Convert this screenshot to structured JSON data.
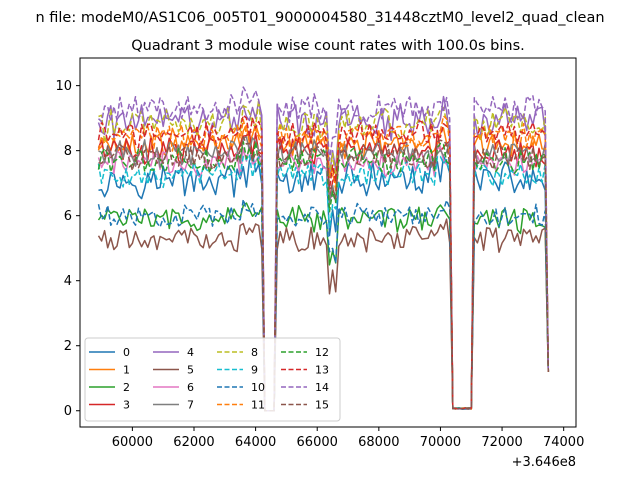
{
  "figure_title": "n file: modeM0/AS1C06_005T01_9000004580_31448cztM0_level2_quad_clean",
  "chart_data": {
    "type": "line",
    "title": "Quadrant 3 module wise count rates with 100.0s bins.",
    "xlabel": "",
    "ylabel": "",
    "xlim": [
      58300,
      74400
    ],
    "ylim": [
      -0.5,
      10.85
    ],
    "x_offset_label": "+3.646e8",
    "x_ticks": [
      60000,
      62000,
      64000,
      66000,
      68000,
      70000,
      72000,
      74000
    ],
    "x_tick_labels": [
      "60000",
      "62000",
      "64000",
      "66000",
      "68000",
      "70000",
      "72000",
      "74000"
    ],
    "y_ticks": [
      0,
      2,
      4,
      6,
      8,
      10
    ],
    "y_tick_labels": [
      "0",
      "2",
      "4",
      "6",
      "8",
      "10"
    ],
    "grid": false,
    "legend_location": "lower-left",
    "legend_columns": 4,
    "series_shape": {
      "x_start": 58900,
      "x_end": 73500,
      "bin": 100,
      "segments": [
        {
          "x_start": 58900,
          "x_end": 64200,
          "state": "nominal"
        },
        {
          "x_start": 64200,
          "x_end": 64300,
          "state": "drop"
        },
        {
          "x_start": 64300,
          "x_end": 64600,
          "state": "zero"
        },
        {
          "x_start": 64600,
          "x_end": 70400,
          "state": "nominal"
        },
        {
          "x_start": 70400,
          "x_end": 71000,
          "state": "low",
          "value": 0.05
        },
        {
          "x_start": 71000,
          "x_end": 73400,
          "state": "nominal"
        },
        {
          "x_start": 73500,
          "x_end": 73500,
          "state": "drop",
          "value": 1.2
        }
      ],
      "dip_near_x": 66500
    },
    "series": [
      {
        "name": "0",
        "color": "#1f77b4",
        "dash": "solid",
        "level": 7.1,
        "noise": 0.45
      },
      {
        "name": "1",
        "color": "#ff7f0e",
        "dash": "solid",
        "level": 8.2,
        "noise": 0.4
      },
      {
        "name": "2",
        "color": "#2ca02c",
        "dash": "solid",
        "level": 5.9,
        "noise": 0.35
      },
      {
        "name": "3",
        "color": "#d62728",
        "dash": "solid",
        "level": 8.0,
        "noise": 0.4
      },
      {
        "name": "4",
        "color": "#9467bd",
        "dash": "solid",
        "level": 8.9,
        "noise": 0.45
      },
      {
        "name": "5",
        "color": "#8c564b",
        "dash": "solid",
        "level": 5.3,
        "noise": 0.35
      },
      {
        "name": "6",
        "color": "#e377c2",
        "dash": "solid",
        "level": 7.6,
        "noise": 0.35
      },
      {
        "name": "7",
        "color": "#7f7f7f",
        "dash": "solid",
        "level": 7.9,
        "noise": 0.35
      },
      {
        "name": "8",
        "color": "#bcbd22",
        "dash": "dashed",
        "level": 8.8,
        "noise": 0.45
      },
      {
        "name": "9",
        "color": "#17becf",
        "dash": "dashed",
        "level": 7.3,
        "noise": 0.35
      },
      {
        "name": "10",
        "color": "#1f77b4",
        "dash": "dashed",
        "level": 6.0,
        "noise": 0.3
      },
      {
        "name": "11",
        "color": "#ff7f0e",
        "dash": "dashed",
        "level": 8.4,
        "noise": 0.35
      },
      {
        "name": "12",
        "color": "#2ca02c",
        "dash": "dashed",
        "level": 7.7,
        "noise": 0.35
      },
      {
        "name": "13",
        "color": "#d62728",
        "dash": "dashed",
        "level": 8.5,
        "noise": 0.35
      },
      {
        "name": "14",
        "color": "#9467bd",
        "dash": "dashed",
        "level": 9.3,
        "noise": 0.4
      },
      {
        "name": "15",
        "color": "#8c564b",
        "dash": "dashed",
        "level": 7.8,
        "noise": 0.35
      }
    ]
  }
}
